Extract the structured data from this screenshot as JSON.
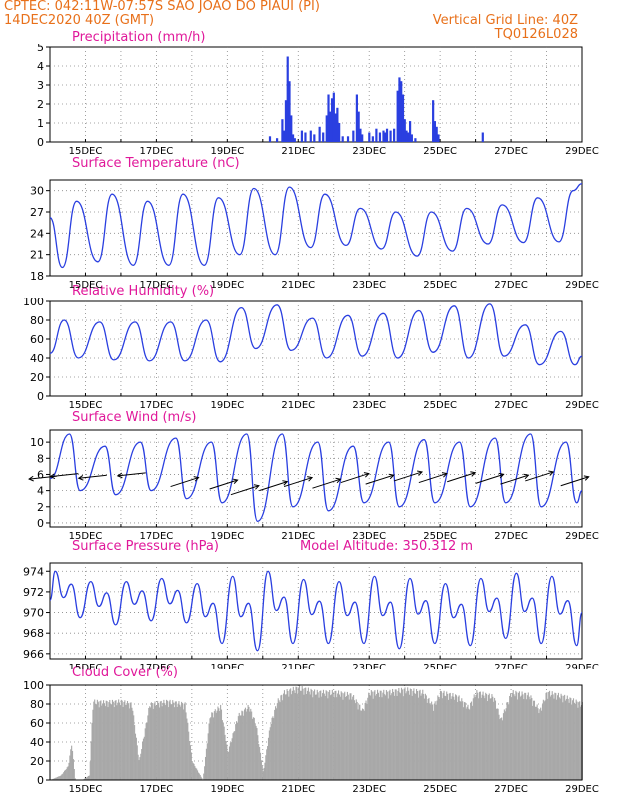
{
  "header": {
    "line1": "CPTEC:  042:11W-07:57S  SAO JOAO DO PIAUI (PI)",
    "line2_left": "14DEC2020 40Z (GMT)",
    "line2_right": "Vertical Grid Line: 40Z",
    "line3_right": "TQ0126L028"
  },
  "colors": {
    "header": "#e8701a",
    "title": "#e0189a",
    "series": "#2a3fe0",
    "cloud": "#a8a8a8"
  },
  "chart_data": [
    {
      "type": "bar",
      "title": "Precipitation (mm/h)",
      "x_ticks": [
        "15DEC",
        "17DEC",
        "19DEC",
        "21DEC",
        "23DEC",
        "25DEC",
        "27DEC",
        "29DEC"
      ],
      "xlim_days": [
        14,
        29
      ],
      "ylim": [
        0,
        5
      ],
      "y_ticks": [
        0,
        1,
        2,
        3,
        4,
        5
      ],
      "grid": true,
      "points": [
        [
          20.2,
          0.3
        ],
        [
          20.4,
          0.2
        ],
        [
          20.55,
          1.2
        ],
        [
          20.6,
          0.6
        ],
        [
          20.65,
          2.2
        ],
        [
          20.7,
          4.5
        ],
        [
          20.75,
          3.2
        ],
        [
          20.8,
          1.4
        ],
        [
          20.85,
          0.4
        ],
        [
          20.9,
          0.2
        ],
        [
          21.1,
          0.6
        ],
        [
          21.2,
          0.5
        ],
        [
          21.35,
          0.6
        ],
        [
          21.45,
          0.4
        ],
        [
          21.6,
          0.8
        ],
        [
          21.7,
          0.5
        ],
        [
          21.8,
          1.4
        ],
        [
          21.85,
          2.5
        ],
        [
          21.9,
          1.6
        ],
        [
          21.95,
          2.3
        ],
        [
          22.0,
          2.6
        ],
        [
          22.05,
          1.5
        ],
        [
          22.1,
          1.8
        ],
        [
          22.15,
          1.0
        ],
        [
          22.25,
          0.3
        ],
        [
          22.4,
          0.3
        ],
        [
          22.55,
          0.6
        ],
        [
          22.65,
          2.5
        ],
        [
          22.7,
          1.6
        ],
        [
          22.75,
          0.7
        ],
        [
          22.8,
          0.4
        ],
        [
          23.0,
          0.5
        ],
        [
          23.1,
          0.3
        ],
        [
          23.2,
          0.7
        ],
        [
          23.3,
          0.5
        ],
        [
          23.4,
          0.6
        ],
        [
          23.45,
          0.5
        ],
        [
          23.5,
          0.7
        ],
        [
          23.6,
          0.6
        ],
        [
          23.7,
          0.7
        ],
        [
          23.8,
          2.7
        ],
        [
          23.85,
          3.4
        ],
        [
          23.9,
          3.2
        ],
        [
          23.95,
          2.5
        ],
        [
          24.0,
          1.2
        ],
        [
          24.05,
          0.6
        ],
        [
          24.1,
          0.5
        ],
        [
          24.15,
          1.1
        ],
        [
          24.2,
          0.4
        ],
        [
          24.3,
          0.2
        ],
        [
          24.8,
          2.2
        ],
        [
          24.85,
          1.1
        ],
        [
          24.9,
          0.8
        ],
        [
          24.95,
          0.4
        ],
        [
          26.2,
          0.5
        ]
      ]
    },
    {
      "type": "line",
      "title": "Surface Temperature (nC)",
      "x_ticks": [
        "15DEC",
        "17DEC",
        "19DEC",
        "21DEC",
        "23DEC",
        "25DEC",
        "27DEC",
        "29DEC"
      ],
      "xlim_days": [
        14,
        29
      ],
      "ylim": [
        18,
        31.5
      ],
      "y_ticks": [
        18,
        21,
        24,
        27,
        30
      ],
      "grid": true,
      "peaks_max": [
        28.5,
        29.5,
        28.5,
        29.5,
        29.0,
        30.3,
        30.5,
        29.5,
        27.5,
        27.0,
        27.0,
        27.5,
        28.0,
        29.0,
        30.0,
        31.0,
        31.5,
        31.0,
        31.0
      ],
      "troughs_min": [
        19.2,
        20.0,
        19.5,
        19.5,
        19.5,
        21.0,
        21.0,
        22.0,
        22.3,
        21.8,
        20.8,
        21.5,
        22.5,
        22.7,
        22.8,
        22.5,
        22.5,
        22.0
      ],
      "start_value": 26.2
    },
    {
      "type": "line",
      "title": "Relative Humidity (%)",
      "x_ticks": [
        "15DEC",
        "17DEC",
        "19DEC",
        "21DEC",
        "23DEC",
        "25DEC",
        "27DEC",
        "29DEC"
      ],
      "xlim_days": [
        14,
        29
      ],
      "ylim": [
        0,
        100
      ],
      "y_ticks": [
        0,
        20,
        40,
        60,
        80,
        100
      ],
      "grid": true,
      "peaks_max": [
        80,
        78,
        78,
        78,
        80,
        93,
        96,
        82,
        85,
        87,
        90,
        95,
        97,
        75,
        68,
        70,
        68,
        60,
        62
      ],
      "troughs_min": [
        40,
        38,
        37,
        37,
        36,
        50,
        48,
        40,
        42,
        40,
        46,
        40,
        42,
        33,
        33,
        33,
        35,
        35
      ],
      "start_value": 45,
      "end_value": 42
    },
    {
      "type": "line",
      "title": "Surface Wind (m/s)",
      "x_ticks": [
        "15DEC",
        "17DEC",
        "19DEC",
        "21DEC",
        "23DEC",
        "25DEC",
        "27DEC",
        "29DEC"
      ],
      "xlim_days": [
        14,
        29
      ],
      "ylim": [
        -0.5,
        11.5
      ],
      "y_ticks": [
        0,
        2,
        4,
        6,
        8,
        10
      ],
      "grid": true,
      "peaks_max": [
        11,
        9.5,
        10,
        10.5,
        10,
        11,
        11,
        10,
        9.5,
        10,
        10.3,
        10,
        10.5,
        11,
        10,
        10,
        10.5,
        10,
        9.5
      ],
      "troughs_min": [
        4,
        3.5,
        4,
        3,
        2.5,
        0.2,
        2,
        1.5,
        2.5,
        2,
        2.5,
        2,
        2.5,
        2,
        2.5,
        3,
        3.5,
        4
      ],
      "start_value": 5.5,
      "end_value": 4,
      "vectors_note": "wind direction arrows drawn along series"
    },
    {
      "type": "line",
      "title": "Surface Pressure (hPa)",
      "annotation": "Model Altitude: 350.312 m",
      "x_ticks": [
        "15DEC",
        "17DEC",
        "19DEC",
        "21DEC",
        "23DEC",
        "25DEC",
        "27DEC",
        "29DEC"
      ],
      "xlim_days": [
        14,
        29
      ],
      "ylim": [
        965.5,
        974.8
      ],
      "y_ticks": [
        966,
        968,
        970,
        972,
        974
      ],
      "grid": true,
      "daily_min": [
        969.5,
        968.8,
        969.2,
        969.0,
        967.0,
        966.3,
        967.0,
        967.0,
        967.0,
        966.5,
        967.0,
        966.8,
        967.5,
        967.0,
        966.8
      ],
      "daily_max": [
        974.0,
        973.0,
        973.0,
        973.3,
        972.8,
        973.5,
        974.0,
        973.2,
        973.0,
        973.5,
        973.3,
        972.8,
        973.3,
        973.8,
        973.5
      ],
      "start_value": 971.2,
      "end_value": 970.0
    },
    {
      "type": "area",
      "title": "Cloud Cover (%)",
      "x_ticks": [
        "15DEC",
        "17DEC",
        "19DEC",
        "21DEC",
        "23DEC",
        "25DEC",
        "27DEC",
        "29DEC"
      ],
      "xlim_days": [
        14,
        29
      ],
      "ylim": [
        0,
        100
      ],
      "y_ticks": [
        0,
        20,
        40,
        60,
        80,
        100
      ],
      "grid": true,
      "profile": [
        [
          14.0,
          0
        ],
        [
          14.3,
          5
        ],
        [
          14.5,
          15
        ],
        [
          14.6,
          40
        ],
        [
          14.7,
          0
        ],
        [
          14.9,
          0
        ],
        [
          15.1,
          5
        ],
        [
          15.2,
          85
        ],
        [
          15.5,
          84
        ],
        [
          16.0,
          85
        ],
        [
          16.3,
          82
        ],
        [
          16.5,
          20
        ],
        [
          16.8,
          82
        ],
        [
          17.3,
          85
        ],
        [
          17.8,
          82
        ],
        [
          18.0,
          20
        ],
        [
          18.3,
          0
        ],
        [
          18.5,
          70
        ],
        [
          18.8,
          80
        ],
        [
          19.0,
          30
        ],
        [
          19.3,
          70
        ],
        [
          19.6,
          80
        ],
        [
          19.8,
          60
        ],
        [
          20.0,
          8
        ],
        [
          20.2,
          60
        ],
        [
          20.4,
          85
        ],
        [
          20.6,
          95
        ],
        [
          21.0,
          100
        ],
        [
          21.5,
          95
        ],
        [
          22.0,
          95
        ],
        [
          22.5,
          92
        ],
        [
          22.8,
          75
        ],
        [
          23.0,
          95
        ],
        [
          23.5,
          95
        ],
        [
          24.0,
          98
        ],
        [
          24.5,
          95
        ],
        [
          24.8,
          80
        ],
        [
          25.0,
          95
        ],
        [
          25.5,
          90
        ],
        [
          25.8,
          78
        ],
        [
          26.0,
          95
        ],
        [
          26.5,
          90
        ],
        [
          26.7,
          65
        ],
        [
          27.0,
          95
        ],
        [
          27.5,
          92
        ],
        [
          27.8,
          75
        ],
        [
          28.0,
          95
        ],
        [
          28.5,
          90
        ],
        [
          29.0,
          82
        ]
      ]
    }
  ]
}
